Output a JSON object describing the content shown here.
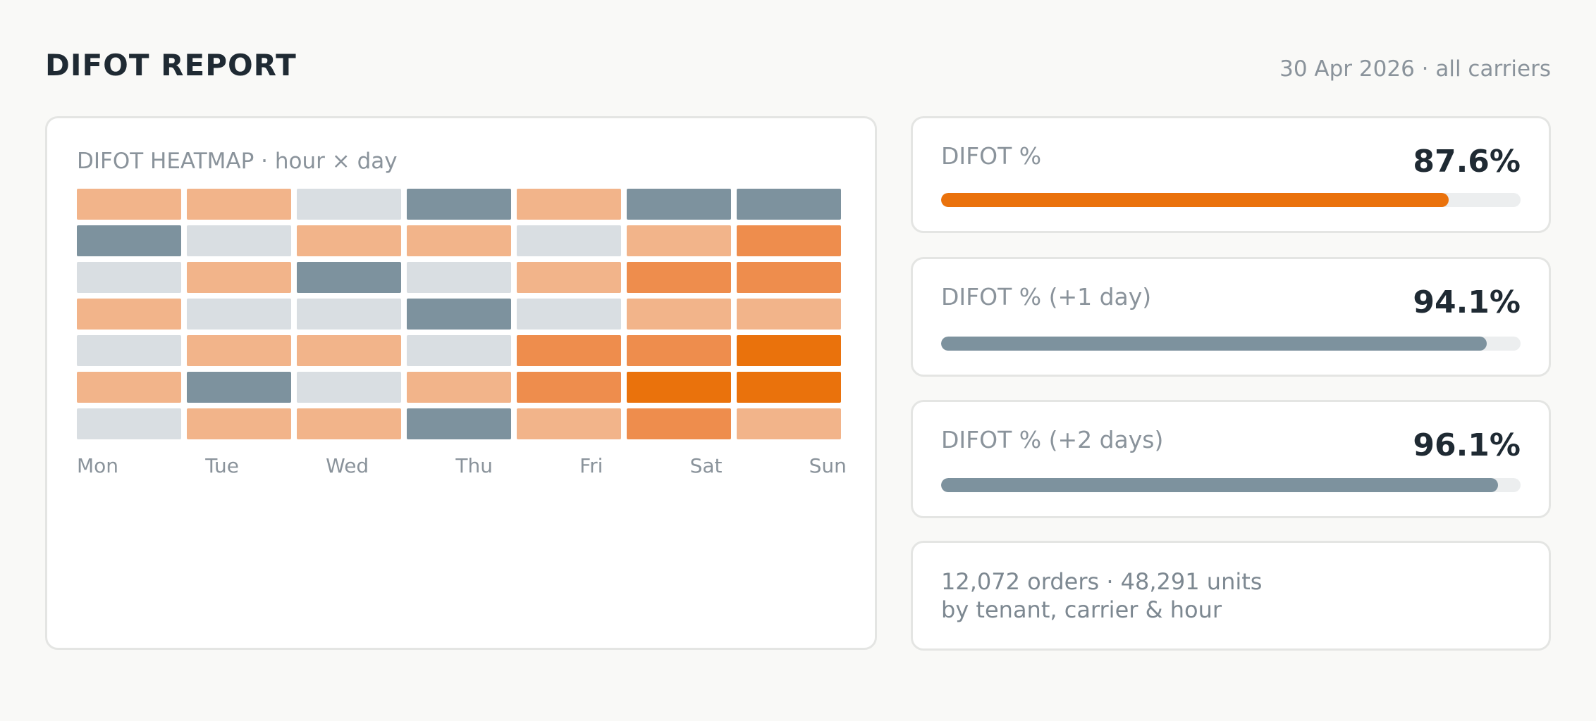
{
  "header": {
    "title": "DIFOT REPORT",
    "subtitle": "30 Apr 2026 · all carriers"
  },
  "heatmap": {
    "title": "DIFOT HEATMAP · hour × day",
    "days": [
      "Mon",
      "Tue",
      "Wed",
      "Thu",
      "Fri",
      "Sat",
      "Sun"
    ],
    "levels": [
      [
        2,
        2,
        0,
        1,
        2,
        1,
        1
      ],
      [
        1,
        0,
        2,
        2,
        0,
        2,
        3
      ],
      [
        0,
        2,
        1,
        0,
        2,
        3,
        3
      ],
      [
        2,
        0,
        0,
        1,
        0,
        2,
        2
      ],
      [
        0,
        2,
        2,
        0,
        3,
        3,
        4
      ],
      [
        2,
        1,
        0,
        2,
        3,
        4,
        4
      ],
      [
        0,
        2,
        2,
        1,
        2,
        3,
        2
      ]
    ],
    "level_colors": [
      "#d9dee2",
      "#7d929e",
      "#f2b48a",
      "#ee8d4d",
      "#ea720c"
    ]
  },
  "metrics": [
    {
      "label": "DIFOT %",
      "value": "87.6%",
      "fill": 0.876,
      "color": "#ea720c"
    },
    {
      "label": "DIFOT % (+1 day)",
      "value": "94.1%",
      "fill": 0.941,
      "color": "#7d929e"
    },
    {
      "label": "DIFOT % (+2 days)",
      "value": "96.1%",
      "fill": 0.961,
      "color": "#7d929e"
    }
  ],
  "summary": {
    "line1": "12,072 orders · 48,291 units",
    "line2": "by tenant, carrier & hour"
  }
}
